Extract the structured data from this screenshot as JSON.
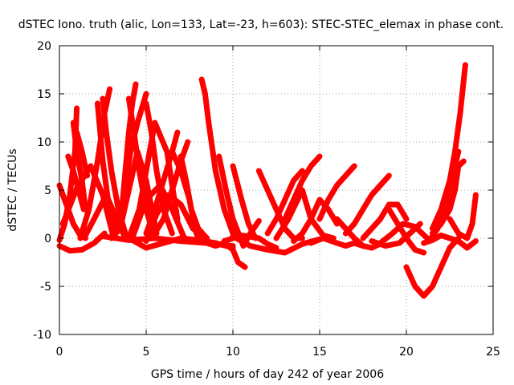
{
  "chart_data": {
    "type": "line",
    "title": "dSTEC Iono. truth (alic, Lon=133, Lat=-23, h=603): STEC-STEC_elemax in phase cont.",
    "xlabel": "GPS time / hours of day 242 of year 2006",
    "ylabel": "dSTEC  / TECUs",
    "xlim": [
      0,
      25
    ],
    "ylim": [
      -10,
      20
    ],
    "xticks": [
      0,
      5,
      10,
      15,
      20,
      25
    ],
    "yticks": [
      -10,
      -5,
      0,
      5,
      10,
      15,
      20
    ],
    "grid": true,
    "color": "#ff0000",
    "series": [
      {
        "x": [
          0,
          0.4,
          0.8,
          1.2,
          1.5
        ],
        "y": [
          5.5,
          3.5,
          1.5,
          0.3,
          0
        ]
      },
      {
        "x": [
          0,
          0.3,
          0.6,
          0.9,
          1.0
        ],
        "y": [
          -0.2,
          1.5,
          4.5,
          9,
          13.5
        ]
      },
      {
        "x": [
          0.5,
          0.8,
          1.1,
          1.4
        ],
        "y": [
          8.5,
          7,
          5,
          3
        ]
      },
      {
        "x": [
          0,
          0.6,
          1.3,
          2.0,
          2.6
        ],
        "y": [
          -0.8,
          -1.3,
          -1.2,
          -0.5,
          0.5
        ]
      },
      {
        "x": [
          0.2,
          1.0,
          1.8,
          2.5,
          3.1
        ],
        "y": [
          1.5,
          5.2,
          7.5,
          4.5,
          0.2
        ]
      },
      {
        "x": [
          0.8,
          1.0,
          1.3,
          1.5
        ],
        "y": [
          12,
          9,
          6,
          3
        ]
      },
      {
        "x": [
          1.0,
          1.3,
          1.6
        ],
        "y": [
          11,
          9,
          6.5
        ]
      },
      {
        "x": [
          1.5,
          2.0,
          2.7,
          3.3,
          3.8
        ],
        "y": [
          0.3,
          2,
          4.5,
          2,
          0
        ]
      },
      {
        "x": [
          2.2,
          2.3,
          2.5,
          2.8,
          3.2
        ],
        "y": [
          14,
          12,
          8,
          4,
          0.5
        ]
      },
      {
        "x": [
          1.2,
          1.7,
          2.2,
          2.6,
          2.9
        ],
        "y": [
          0,
          3,
          8,
          13,
          15.5
        ]
      },
      {
        "x": [
          2.5,
          2.7,
          3.0,
          3.4,
          3.8
        ],
        "y": [
          14.5,
          11,
          7,
          3,
          0.5
        ]
      },
      {
        "x": [
          3.0,
          3.5,
          4.0,
          4.5,
          5.0,
          5.6
        ],
        "y": [
          0,
          1,
          5,
          9,
          6,
          0.5
        ]
      },
      {
        "x": [
          3.6,
          3.8,
          4.0,
          4.2,
          4.4
        ],
        "y": [
          3,
          7,
          11,
          14,
          16
        ]
      },
      {
        "x": [
          3.4,
          3.7,
          4.1,
          4.5,
          5.0
        ],
        "y": [
          1,
          4,
          9,
          12,
          15
        ]
      },
      {
        "x": [
          4.0,
          4.3,
          4.6,
          5.0,
          5.4
        ],
        "y": [
          14.5,
          11,
          7,
          3,
          0.5
        ]
      },
      {
        "x": [
          4.0,
          4.6,
          5.0,
          5.5,
          6.2,
          6.8
        ],
        "y": [
          0,
          3,
          7,
          12,
          9,
          2
        ]
      },
      {
        "x": [
          5.0,
          5.3,
          5.6,
          6.0,
          6.5
        ],
        "y": [
          14,
          11,
          7,
          3,
          0.5
        ]
      },
      {
        "x": [
          4.2,
          5.0,
          5.8,
          6.5,
          7.2
        ],
        "y": [
          0,
          4,
          5.5,
          3,
          0
        ]
      },
      {
        "x": [
          5.0,
          5.5,
          6.0,
          6.5,
          6.8
        ],
        "y": [
          0.5,
          3,
          6,
          9,
          11
        ]
      },
      {
        "x": [
          5.5,
          6.0,
          6.5,
          7.0,
          7.4
        ],
        "y": [
          0.5,
          2,
          5,
          8,
          10
        ]
      },
      {
        "x": [
          6.5,
          7.0,
          7.5,
          7.8,
          8.0
        ],
        "y": [
          9,
          7,
          4,
          1,
          0
        ]
      },
      {
        "x": [
          7.0,
          7.3,
          7.6,
          8.0,
          8.5
        ],
        "y": [
          8.5,
          6,
          3,
          1,
          0
        ]
      },
      {
        "x": [
          5.0,
          5.6,
          6.3,
          7.0,
          7.7,
          8.5
        ],
        "y": [
          -0.3,
          2.5,
          4.5,
          3.5,
          1,
          0
        ]
      },
      {
        "x": [
          2.5,
          4,
          5.5,
          7,
          8.5,
          10
        ],
        "y": [
          0.2,
          -0.2,
          0,
          -0.3,
          -0.5,
          -0.8
        ]
      },
      {
        "x": [
          4,
          5,
          6,
          7,
          8,
          9,
          10
        ],
        "y": [
          0,
          -1,
          -0.5,
          0,
          -0.2,
          -0.5,
          -1
        ]
      },
      {
        "x": [
          8.2,
          8.4,
          8.6,
          9.0,
          9.5,
          10.0,
          10.8
        ],
        "y": [
          16.5,
          15,
          12,
          7,
          3,
          0.5,
          0
        ]
      },
      {
        "x": [
          8.5,
          9.0,
          9.5,
          10.0,
          10.3,
          10.7
        ],
        "y": [
          -0.5,
          -0.8,
          -0.5,
          -1.2,
          -2.5,
          -3
        ]
      },
      {
        "x": [
          9.2,
          9.6,
          10.0,
          10.6,
          11.0,
          11.5
        ],
        "y": [
          8.5,
          5,
          2,
          -0.8,
          0.5,
          1.8
        ]
      },
      {
        "x": [
          10.0,
          10.5,
          10.9,
          11.3
        ],
        "y": [
          7.5,
          4,
          1.5,
          0
        ]
      },
      {
        "x": [
          9.5,
          10.5,
          11.5,
          12,
          12.5
        ],
        "y": [
          -0.3,
          0.3,
          0,
          -0.6,
          -1
        ]
      },
      {
        "x": [
          10,
          11,
          12,
          13,
          14,
          15
        ],
        "y": [
          0.2,
          -0.8,
          -1.2,
          -1.5,
          -0.6,
          -0.1
        ]
      },
      {
        "x": [
          11.5,
          12.0,
          12.5,
          13.0,
          13.5,
          14.0
        ],
        "y": [
          7,
          5,
          3,
          1,
          0,
          0
        ]
      },
      {
        "x": [
          12.0,
          12.5,
          13.0,
          13.5,
          14.0
        ],
        "y": [
          0.5,
          2,
          4,
          6,
          7
        ]
      },
      {
        "x": [
          13.0,
          13.5,
          14.0,
          14.5,
          15.0
        ],
        "y": [
          2,
          4,
          6,
          7.5,
          8.5
        ]
      },
      {
        "x": [
          12.5,
          13.2,
          14,
          14.5,
          15.2,
          15.8
        ],
        "y": [
          0,
          2,
          5,
          2,
          0.3,
          0
        ]
      },
      {
        "x": [
          13.5,
          14,
          14.5,
          15,
          15.5,
          16
        ],
        "y": [
          -0.3,
          0.5,
          2,
          4,
          3,
          1.5
        ]
      },
      {
        "x": [
          14.5,
          15.2,
          16.0,
          16.5,
          17.0,
          17.5
        ],
        "y": [
          -0.5,
          0,
          -0.5,
          -0.8,
          -0.5,
          -0.8
        ]
      },
      {
        "x": [
          15.0,
          15.5,
          16.0,
          16.5,
          17.0
        ],
        "y": [
          2,
          4,
          5.5,
          6.5,
          7.5
        ]
      },
      {
        "x": [
          16.0,
          16.5,
          17.0,
          17.5,
          18.0,
          18.6
        ],
        "y": [
          2,
          1,
          0,
          -0.8,
          -1,
          -0.5
        ]
      },
      {
        "x": [
          16.5,
          17.0,
          17.5,
          18.0,
          18.5,
          19.0
        ],
        "y": [
          0.5,
          1.5,
          3,
          4.5,
          5.5,
          6.5
        ]
      },
      {
        "x": [
          17.5,
          18.0,
          18.5,
          19.0,
          19.5,
          20.0
        ],
        "y": [
          0,
          1,
          2,
          3.5,
          3.5,
          2
        ]
      },
      {
        "x": [
          18.0,
          18.8,
          19.6,
          20.2,
          20.8
        ],
        "y": [
          -0.3,
          -0.8,
          -0.5,
          0.5,
          1.5
        ]
      },
      {
        "x": [
          18.5,
          19.2,
          19.8,
          20.5,
          21.2
        ],
        "y": [
          -0.5,
          0.5,
          1.5,
          1.2,
          0
        ]
      },
      {
        "x": [
          19.0,
          19.5,
          20.0,
          20.5,
          21.0
        ],
        "y": [
          3,
          1.5,
          0,
          -1.2,
          -1.5
        ]
      },
      {
        "x": [
          20.0,
          20.5,
          21.0,
          21.5,
          22.0,
          22.5,
          23.0
        ],
        "y": [
          -3,
          -5,
          -6,
          -5,
          -3,
          -1,
          0
        ]
      },
      {
        "x": [
          21.0,
          21.5,
          22.0,
          22.5,
          23.0,
          23.5,
          24.0
        ],
        "y": [
          -0.5,
          -0.2,
          0.3,
          0,
          -0.3,
          -1,
          -0.3
        ]
      },
      {
        "x": [
          21.3,
          21.8,
          22.2,
          22.6,
          23.0
        ],
        "y": [
          -0.3,
          1,
          3,
          6,
          9
        ]
      },
      {
        "x": [
          21.5,
          22.0,
          22.5,
          22.8,
          23.0,
          23.3
        ],
        "y": [
          0.5,
          1.5,
          3,
          5,
          7.5,
          8
        ]
      },
      {
        "x": [
          21.5,
          22.0,
          22.5,
          22.8,
          23.1,
          23.4
        ],
        "y": [
          1,
          3,
          6,
          9,
          13,
          18
        ]
      },
      {
        "x": [
          22.5,
          23.0,
          23.5,
          23.8,
          24.0
        ],
        "y": [
          2,
          0.5,
          0,
          1.5,
          4.5
        ]
      }
    ]
  }
}
